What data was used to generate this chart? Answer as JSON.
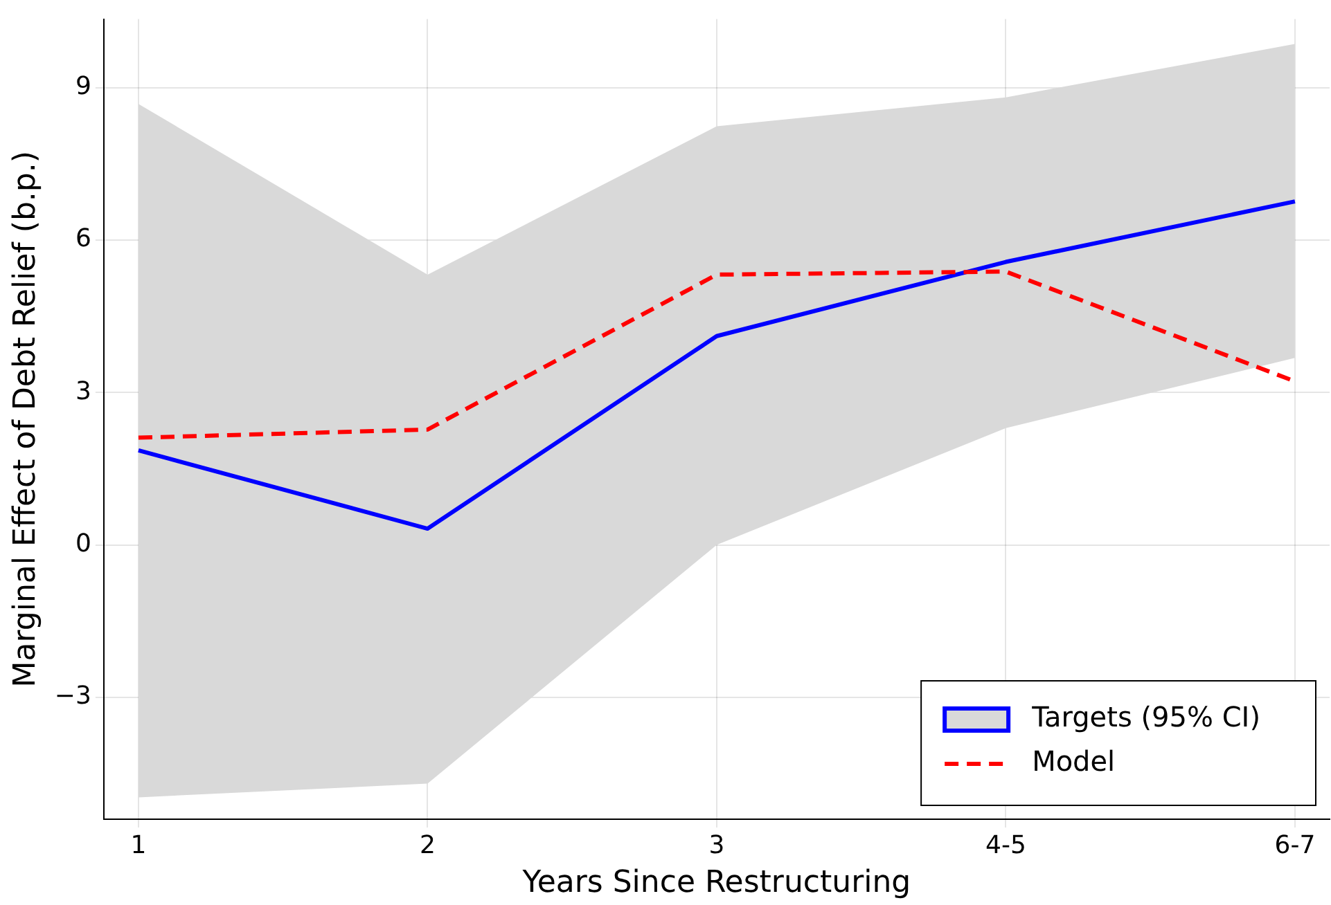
{
  "chart_data": {
    "type": "line",
    "xlabel": "Years Since Restructuring",
    "ylabel": "Marginal Effect of Debt Relief (b.p.)",
    "categories": [
      "1",
      "2",
      "3",
      "4-5",
      "6-7"
    ],
    "series": [
      {
        "name": "Targets (95% CI)",
        "color": "#0000ff",
        "line_style": "solid",
        "values": [
          1.86,
          0.32,
          4.11,
          5.57,
          6.76
        ],
        "lower": [
          -4.97,
          -4.7,
          0.0,
          2.3,
          3.68
        ],
        "upper": [
          8.68,
          5.32,
          8.24,
          8.81,
          9.86
        ]
      },
      {
        "name": "Model",
        "color": "#ff0000",
        "line_style": "dashed",
        "values": [
          2.11,
          2.27,
          5.32,
          5.38,
          3.22
        ]
      }
    ],
    "ylim": [
      -5.4,
      10.35
    ],
    "yticks": [
      {
        "value": -3,
        "label": "−3"
      },
      0,
      3,
      6,
      9
    ],
    "grid": true,
    "legend": "bottom right",
    "marker": "none"
  }
}
